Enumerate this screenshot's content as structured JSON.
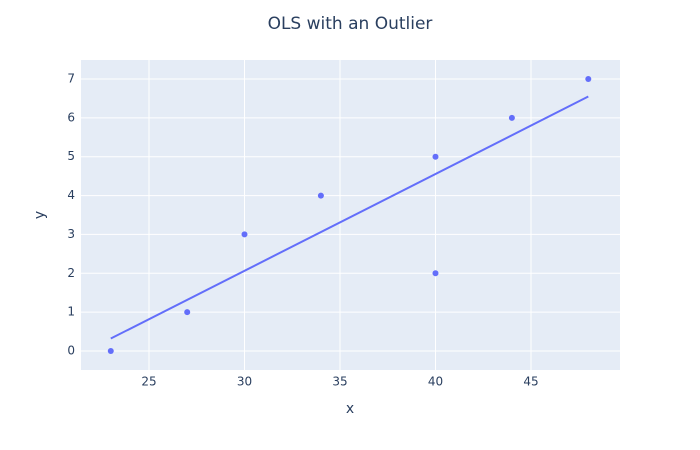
{
  "chart_data": {
    "type": "scatter",
    "title": "OLS with an Outlier",
    "x_label": "x",
    "y_label": "y",
    "series": [
      {
        "mode": "markers",
        "color": "#636efa",
        "x": [
          23,
          27,
          30,
          34,
          40,
          40,
          44,
          48
        ],
        "values": [
          0,
          1,
          3,
          4,
          5,
          2,
          6,
          7
        ]
      },
      {
        "mode": "lines",
        "color": "#636efa",
        "x": [
          23,
          48
        ],
        "values": [
          0.32,
          6.55
        ]
      }
    ],
    "xlim": [
      21.44,
      49.66
    ],
    "xticks": [
      25,
      30,
      35,
      40,
      45
    ],
    "ylim": [
      -0.49,
      7.49
    ],
    "yticks": [
      0,
      1,
      2,
      3,
      4,
      5,
      6,
      7
    ],
    "grid": true
  }
}
